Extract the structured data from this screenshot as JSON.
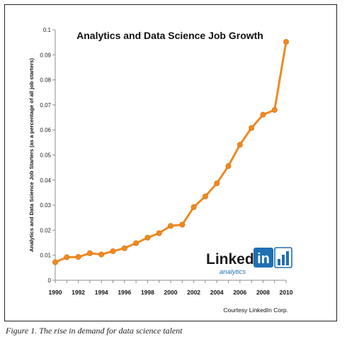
{
  "chart_data": {
    "type": "line",
    "title": "Analytics and Data Science Job Growth",
    "xlabel": "",
    "ylabel": "Analytics and Data Science Job Starters (as a percentage of all job starters)",
    "x": [
      1990,
      1991,
      1992,
      1993,
      1994,
      1995,
      1996,
      1997,
      1998,
      1999,
      2000,
      2001,
      2002,
      2003,
      2004,
      2005,
      2006,
      2007,
      2008,
      2009,
      2010
    ],
    "series": [
      {
        "values": [
          0.0072,
          0.0092,
          0.0093,
          0.0108,
          0.0103,
          0.0116,
          0.0128,
          0.0148,
          0.017,
          0.0188,
          0.0217,
          0.0222,
          0.0292,
          0.0335,
          0.0387,
          0.0456,
          0.0541,
          0.0608,
          0.0661,
          0.068,
          0.0952
        ],
        "color": "#EE8A22"
      }
    ],
    "xlim": [
      1990,
      2010
    ],
    "ylim": [
      0,
      0.1
    ],
    "xticks": [
      "1990",
      "1992",
      "1994",
      "1996",
      "1998",
      "2000",
      "2002",
      "2004",
      "2006",
      "2008",
      "2010"
    ],
    "yticks": [
      "0",
      "0.01",
      "0.02",
      "0.03",
      "0.04",
      "0.05",
      "0.06",
      "0.07",
      "0.08",
      "0.09",
      "0.1"
    ],
    "grid": false,
    "legend": "none"
  },
  "logo": {
    "brand_text": "Linked",
    "in_text": "in",
    "sub_text": "analytics",
    "brand_color": "#1a1a1a",
    "in_color": "#1f6fb2",
    "sub_color": "#1f6fb2"
  },
  "credit": "Courtesy LinkedIn Corp.",
  "caption": "Figure 1. The rise in demand for data science talent"
}
